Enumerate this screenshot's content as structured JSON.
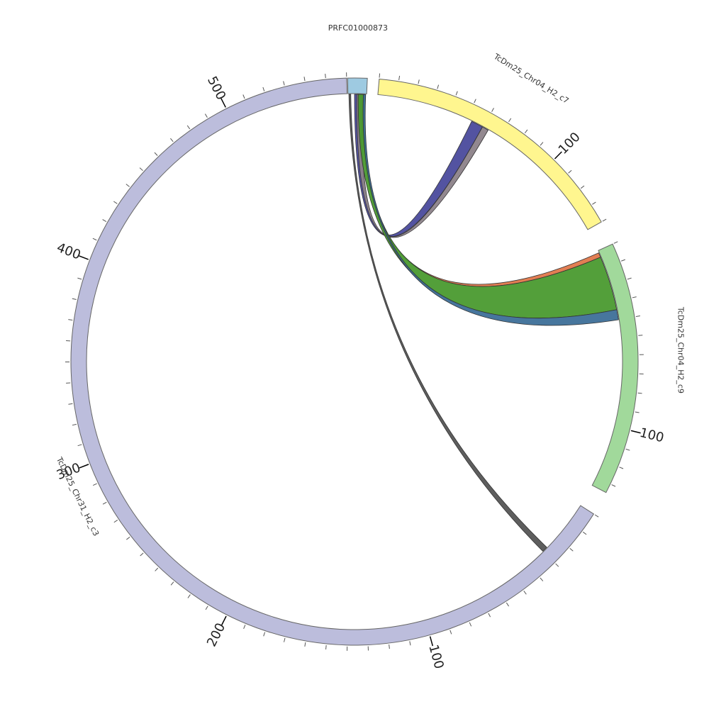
{
  "chart_data": {
    "type": "chord",
    "title": "",
    "segments": [
      {
        "name": "PRFC01000873",
        "length": 12,
        "color": "#9ecae1",
        "start_angle": -1.4,
        "end_angle": 2.6,
        "ticks": []
      },
      {
        "name": "TcDm25_Chr04_H2_c7",
        "length": 140,
        "color": "#fff68f",
        "start_angle": 5.0,
        "end_angle": 60.5,
        "tick_step": 10,
        "major_ticks": [
          100
        ]
      },
      {
        "name": "TcDm25_Chr04_H2_c9",
        "length": 135,
        "color": "#a1d99b",
        "start_angle": 65.5,
        "end_angle": 117.5,
        "tick_step": 10,
        "major_ticks": [
          100
        ]
      },
      {
        "name": "TcDm25_Chr31_H2_c3",
        "length": 560,
        "color": "#bcbddc",
        "start_angle": 302.0,
        "end_angle": 358.4,
        "note": "segment spans 122.5deg to 358.4deg reading counter-clockwise from top",
        "span_start": 122.5,
        "span_end": 358.4,
        "tick_step": 10,
        "major_ticks": [
          100,
          200,
          300,
          400,
          500
        ]
      }
    ],
    "tick_labels": [
      {
        "segment": "TcDm25_Chr04_H2_c7",
        "label": "100"
      },
      {
        "segment": "TcDm25_Chr04_H2_c9",
        "label": "100"
      },
      {
        "segment": "TcDm25_Chr31_H2_c3",
        "label": "100"
      },
      {
        "segment": "TcDm25_Chr31_H2_c3",
        "label": "200"
      },
      {
        "segment": "TcDm25_Chr31_H2_c3",
        "label": "300"
      },
      {
        "segment": "TcDm25_Chr31_H2_c3",
        "label": "400"
      },
      {
        "segment": "TcDm25_Chr31_H2_c3",
        "label": "500"
      }
    ],
    "links": [
      {
        "from": "PRFC01000873",
        "to": "TcDm25_Chr04_H2_c7",
        "color": "#4a4a9c"
      },
      {
        "from": "PRFC01000873",
        "to": "TcDm25_Chr04_H2_c7",
        "color": "#8c8289"
      },
      {
        "from": "PRFC01000873",
        "to": "TcDm25_Chr04_H2_c9",
        "color": "#e0774a"
      },
      {
        "from": "PRFC01000873",
        "to": "TcDm25_Chr04_H2_c9",
        "color": "#4a9a2f"
      },
      {
        "from": "PRFC01000873",
        "to": "TcDm25_Chr04_H2_c9",
        "color": "#3d6f98"
      },
      {
        "from": "PRFC01000873",
        "to": "TcDm25_Chr31_H2_c3",
        "color": "#555555"
      }
    ]
  }
}
